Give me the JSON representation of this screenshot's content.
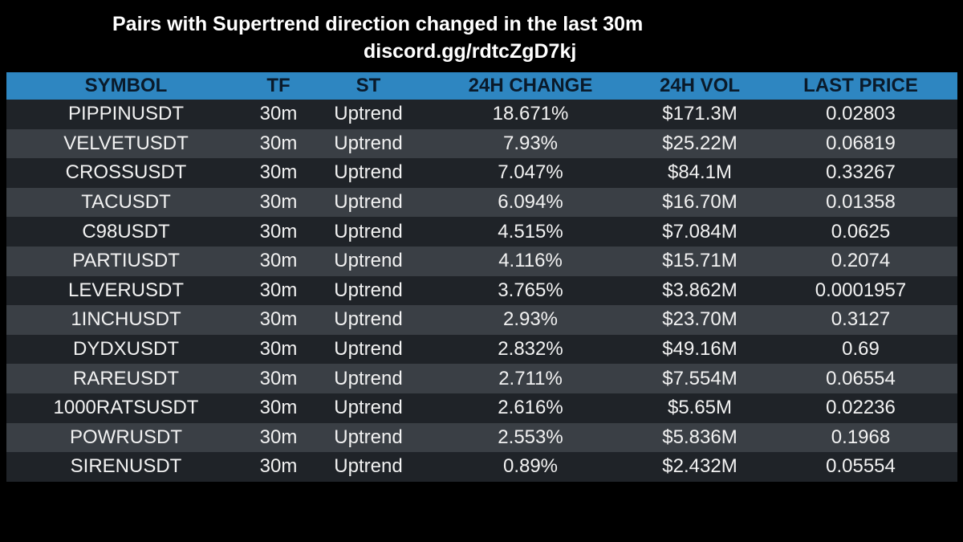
{
  "header": {
    "title": "Pairs with Supertrend direction changed in the last 30m",
    "subtitle": "discord.gg/rdtcZgD7kj"
  },
  "table": {
    "columns": [
      "SYMBOL",
      "TF",
      "ST",
      "24H CHANGE",
      "24H VOL",
      "LAST PRICE"
    ],
    "rows": [
      [
        "PIPPINUSDT",
        "30m",
        "Uptrend",
        "18.671%",
        "$171.3M",
        "0.02803"
      ],
      [
        "VELVETUSDT",
        "30m",
        "Uptrend",
        "7.93%",
        "$25.22M",
        "0.06819"
      ],
      [
        "CROSSUSDT",
        "30m",
        "Uptrend",
        "7.047%",
        "$84.1M",
        "0.33267"
      ],
      [
        "TACUSDT",
        "30m",
        "Uptrend",
        "6.094%",
        "$16.70M",
        "0.01358"
      ],
      [
        "C98USDT",
        "30m",
        "Uptrend",
        "4.515%",
        "$7.084M",
        "0.0625"
      ],
      [
        "PARTIUSDT",
        "30m",
        "Uptrend",
        "4.116%",
        "$15.71M",
        "0.2074"
      ],
      [
        "LEVERUSDT",
        "30m",
        "Uptrend",
        "3.765%",
        "$3.862M",
        "0.0001957"
      ],
      [
        "1INCHUSDT",
        "30m",
        "Uptrend",
        "2.93%",
        "$23.70M",
        "0.3127"
      ],
      [
        "DYDXUSDT",
        "30m",
        "Uptrend",
        "2.832%",
        "$49.16M",
        "0.69"
      ],
      [
        "RAREUSDT",
        "30m",
        "Uptrend",
        "2.711%",
        "$7.554M",
        "0.06554"
      ],
      [
        "1000RATSUSDT",
        "30m",
        "Uptrend",
        "2.616%",
        "$5.65M",
        "0.02236"
      ],
      [
        "POWRUSDT",
        "30m",
        "Uptrend",
        "2.553%",
        "$5.836M",
        "0.1968"
      ],
      [
        "SIRENUSDT",
        "30m",
        "Uptrend",
        "0.89%",
        "$2.432M",
        "0.05554"
      ]
    ]
  },
  "colors": {
    "background": "#000000",
    "header_row": "#2e86c1",
    "row_dark": "#1f2328",
    "row_light": "#3a3f45",
    "text": "#f2f2f2"
  }
}
